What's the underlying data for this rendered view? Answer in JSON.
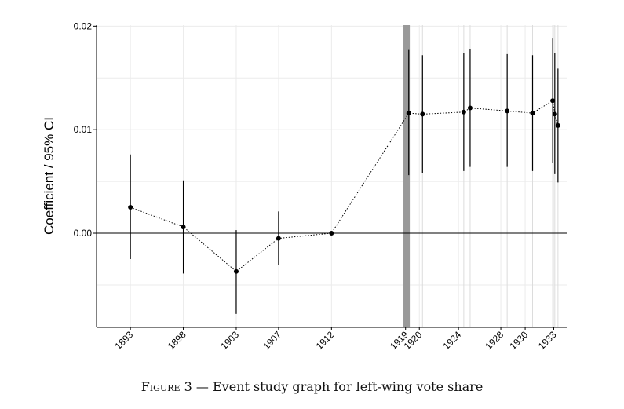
{
  "caption": {
    "label": "Figure",
    "number": "3",
    "separator": "—",
    "text": "Event study graph for left-wing vote share"
  },
  "chart_data": {
    "type": "scatter",
    "ylabel": "Coefficient / 95% CI",
    "xlabel": "",
    "title": "",
    "xlim": [
      1889.8,
      1934.3
    ],
    "ylim": [
      -0.0091,
      0.0201
    ],
    "y_ticks": [
      "0.00",
      "0.01",
      "0.02"
    ],
    "y_tick_values": [
      0.0,
      0.01,
      0.02
    ],
    "x_tick_labels": [
      "1893",
      "1898",
      "1903",
      "1907",
      "1912",
      "1919",
      "1920",
      "1924",
      "1928",
      "1930",
      "1933"
    ],
    "x_tick_values": [
      1893,
      1898,
      1903,
      1907,
      1912,
      1919,
      1920.3,
      1924,
      1928,
      1930.3,
      1933
    ],
    "points": [
      {
        "x": 1893,
        "y": 0.0025,
        "lo": -0.0025,
        "hi": 0.0076
      },
      {
        "x": 1898,
        "y": 0.0006,
        "lo": -0.0039,
        "hi": 0.0051
      },
      {
        "x": 1903,
        "y": -0.0037,
        "lo": -0.0078,
        "hi": 0.0003
      },
      {
        "x": 1907,
        "y": -0.0005,
        "lo": -0.0031,
        "hi": 0.0021
      },
      {
        "x": 1912,
        "y": 0.0,
        "lo": 0.0,
        "hi": 0.0
      },
      {
        "x": 1919.3,
        "y": 0.0116,
        "lo": 0.0056,
        "hi": 0.0177
      },
      {
        "x": 1920.6,
        "y": 0.0115,
        "lo": 0.0058,
        "hi": 0.0172
      },
      {
        "x": 1924.5,
        "y": 0.0117,
        "lo": 0.006,
        "hi": 0.0174
      },
      {
        "x": 1925.1,
        "y": 0.0121,
        "lo": 0.0064,
        "hi": 0.0178
      },
      {
        "x": 1928.6,
        "y": 0.0118,
        "lo": 0.0064,
        "hi": 0.0173
      },
      {
        "x": 1931.0,
        "y": 0.0116,
        "lo": 0.006,
        "hi": 0.0172
      },
      {
        "x": 1932.9,
        "y": 0.0128,
        "lo": 0.0068,
        "hi": 0.0188
      },
      {
        "x": 1933.1,
        "y": 0.0115,
        "lo": 0.0057,
        "hi": 0.0174
      },
      {
        "x": 1933.4,
        "y": 0.0104,
        "lo": 0.0049,
        "hi": 0.0159
      }
    ],
    "shaded_band": {
      "from": 1918.8,
      "to": 1919.4,
      "color": "#999999"
    },
    "reference_line_y": 0.0,
    "vertical_gridlines_x": [
      1919.3,
      1920.6,
      1924.5,
      1925.1,
      1928.6,
      1931.0,
      1932.9,
      1933.1,
      1933.4
    ],
    "connector_style": "dotted",
    "grid": true,
    "legend": "none",
    "colors": {
      "points": "#000000",
      "grid": "#ebebeb",
      "shade": "#999999"
    }
  }
}
